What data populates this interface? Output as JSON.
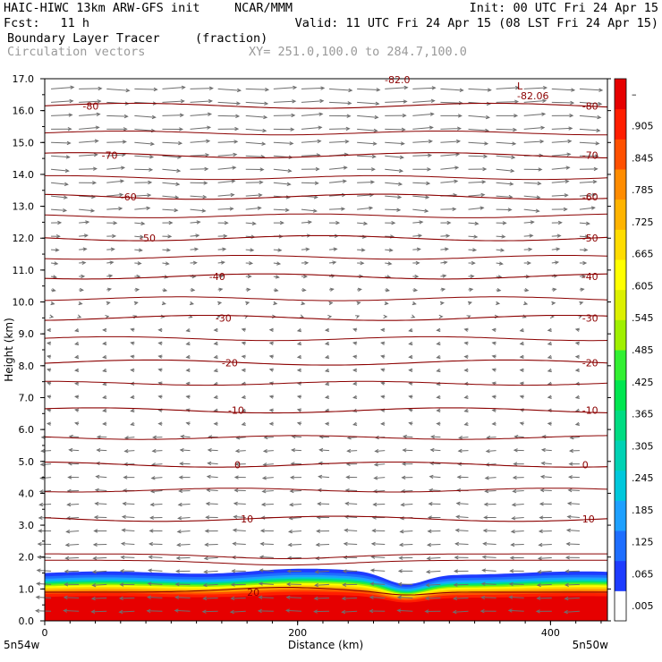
{
  "header": {
    "model": "HAIC-HIWC 13km ARW-GFS init",
    "org": "NCAR/MMM",
    "init": "Init: 00 UTC Fri 24 Apr 15",
    "fcst_label": "Fcst:",
    "fcst_value": "11 h",
    "valid": "Valid: 11 UTC Fri 24 Apr 15 (08 LST Fri 24 Apr 15)",
    "field_name": "Boundary Layer Tracer",
    "field_units": "(fraction)",
    "vectors_label": "Circulation vectors",
    "xy_label": "XY= 251.0,100.0 to 284.7,100.0"
  },
  "chart_data": {
    "type": "heatmap",
    "xlabel": "Distance (km)",
    "ylabel": "Height (km)",
    "xlim": [
      0,
      445
    ],
    "ylim": [
      0,
      17
    ],
    "x_ticks": [
      "0",
      "200",
      "400"
    ],
    "x_tick_values": [
      0,
      200,
      400
    ],
    "y_ticks": [
      "0.0",
      "1.0",
      "2.0",
      "3.0",
      "4.0",
      "5.0",
      "6.0",
      "7.0",
      "8.0",
      "9.0",
      "10.0",
      "11.0",
      "12.0",
      "13.0",
      "14.0",
      "15.0",
      "16.0",
      "17.0"
    ],
    "y_tick_values": [
      0,
      1,
      2,
      3,
      4,
      5,
      6,
      7,
      8,
      9,
      10,
      11,
      12,
      13,
      14,
      15,
      16,
      17
    ],
    "x_endpoints": {
      "left": "5n54w",
      "right": "5n50w"
    },
    "colorbar": {
      "ticks": [
        ".005",
        ".065",
        ".125",
        ".185",
        ".245",
        ".305",
        ".365",
        ".425",
        ".485",
        ".545",
        ".605",
        ".665",
        ".725",
        ".785",
        ".845",
        ".905",
        "–"
      ],
      "colors": [
        "#ffffff",
        "#1e3cff",
        "#1e6eff",
        "#1ea0ff",
        "#00c8dc",
        "#00d2b4",
        "#00dc82",
        "#00e650",
        "#32f032",
        "#a0f000",
        "#dcf000",
        "#ffff00",
        "#ffdc00",
        "#ffb400",
        "#ff8c00",
        "#ff5000",
        "#ff1e00",
        "#e60000"
      ]
    },
    "contours": [
      {
        "label": "-80",
        "height_km": 16.15
      },
      {
        "label": "-70",
        "height_km": 14.6
      },
      {
        "label": "-60",
        "height_km": 13.3
      },
      {
        "label": "-50",
        "height_km": 12.0
      },
      {
        "label": "-40",
        "height_km": 10.8
      },
      {
        "label": "-30",
        "height_km": 9.5
      },
      {
        "label": "-20",
        "height_km": 8.1
      },
      {
        "label": "-10",
        "height_km": 6.6
      },
      {
        "label": "0",
        "height_km": 4.9
      },
      {
        "label": "10",
        "height_km": 3.2
      },
      {
        "label": "20",
        "height_km": 0.9
      }
    ],
    "annotations": [
      "L",
      "-82.06",
      "-82.0"
    ],
    "tracer_top_km": 1.5
  }
}
